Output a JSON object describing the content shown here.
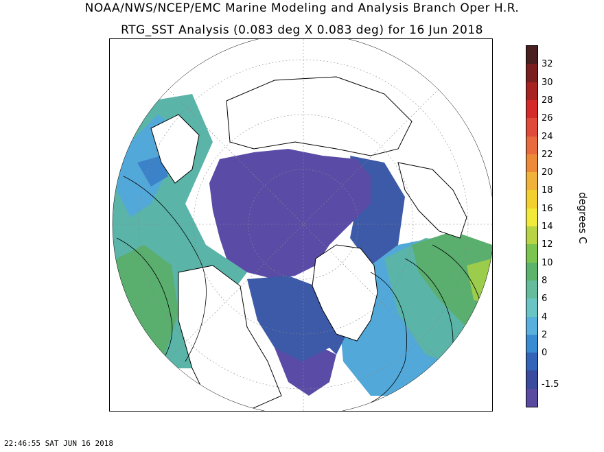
{
  "header": {
    "title_line1": "NOAA/NWS/NCEP/EMC Marine Modeling and Analysis Branch Oper H.R.",
    "title_line2": "RTG_SST Analysis (0.083 deg X 0.083 deg) for 16 Jun 2018"
  },
  "colorbar": {
    "title": "degrees C",
    "labels": [
      "32",
      "30",
      "28",
      "26",
      "24",
      "22",
      "20",
      "18",
      "16",
      "14",
      "12",
      "10",
      "8",
      "6",
      "4",
      "2",
      "0",
      "-1.5"
    ],
    "colors": [
      "#4a1f1f",
      "#7a1f1f",
      "#a82222",
      "#d42a2a",
      "#e04a3a",
      "#e86a3e",
      "#ec8a3a",
      "#f0b23a",
      "#f2d030",
      "#f2ea3a",
      "#b8d444",
      "#7cc450",
      "#5cb46c",
      "#64bc9c",
      "#6ac4c4",
      "#5ab0dc",
      "#3a8cd2",
      "#3464b8",
      "#3a4a9c",
      "#5a4aa0"
    ]
  },
  "map": {
    "region": "Arctic polar stereographic",
    "colors": {
      "ice_sea": "#5a4ca6",
      "polar_blue": "#3c5aa8",
      "cold_blue": "#3c82c8",
      "mid_blue": "#52a8d8",
      "teal": "#5ab4a8",
      "green": "#5aae6e",
      "yellow_green": "#9ccc4c",
      "land": "#ffffff"
    }
  },
  "footer": {
    "timestamp": "22:46:55  SAT JUN 16 2018"
  }
}
